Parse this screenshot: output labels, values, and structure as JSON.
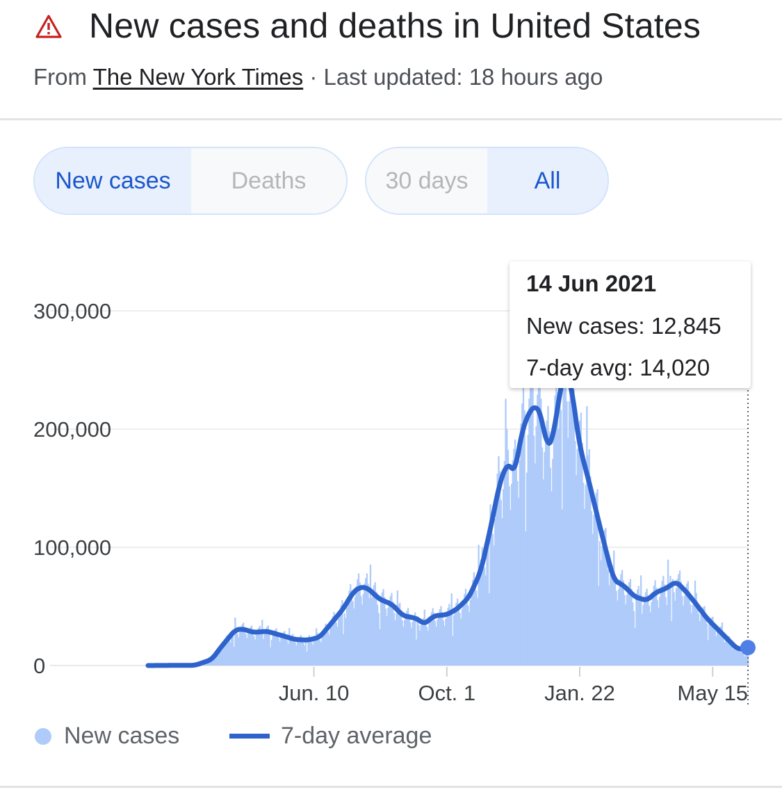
{
  "header": {
    "title": "New cases and deaths in United States",
    "source_prefix": "From",
    "source_name": "The New York Times",
    "source_suffix": " · Last updated: 18 hours ago",
    "warning_icon": "warning-triangle-icon"
  },
  "toggles": {
    "type_options": [
      "New cases",
      "Deaths"
    ],
    "type_selected": "New cases",
    "range_options": [
      "30 days",
      "All"
    ],
    "range_selected": "All"
  },
  "tooltip": {
    "date": "14 Jun 2021",
    "new_cases_line": "New cases: 12,845",
    "avg_line": "7-day avg: 14,020"
  },
  "legend": {
    "new_cases": "New cases",
    "avg": "7-day average"
  },
  "colors": {
    "bars": "#aecbfa",
    "avg_line": "#2f63cc",
    "accent": "#1a56c9"
  },
  "chart_data": {
    "type": "area",
    "y_ticks": [
      {
        "value": 0,
        "label": "0"
      },
      {
        "value": 100000,
        "label": "100,000"
      },
      {
        "value": 200000,
        "label": "200,000"
      },
      {
        "value": 300000,
        "label": "300,000"
      }
    ],
    "ylim": [
      0,
      340000
    ],
    "x_ticks": [
      {
        "date": "2020-06-10",
        "label": "Jun. 10"
      },
      {
        "date": "2020-10-01",
        "label": "Oct. 1"
      },
      {
        "date": "2021-01-22",
        "label": "Jan. 22"
      },
      {
        "date": "2021-05-15",
        "label": "May 15"
      }
    ],
    "x_range": [
      "2020-01-21",
      "2021-06-14"
    ],
    "series": [
      {
        "name": "7-day average",
        "style": "line",
        "points": [
          [
            "2020-01-21",
            0
          ],
          [
            "2020-03-01",
            200
          ],
          [
            "2020-03-15",
            5000
          ],
          [
            "2020-03-25",
            18000
          ],
          [
            "2020-04-04",
            30000
          ],
          [
            "2020-04-10",
            31000
          ],
          [
            "2020-04-20",
            28000
          ],
          [
            "2020-05-01",
            29000
          ],
          [
            "2020-05-15",
            25000
          ],
          [
            "2020-05-25",
            22000
          ],
          [
            "2020-06-05",
            21500
          ],
          [
            "2020-06-15",
            24000
          ],
          [
            "2020-06-25",
            36000
          ],
          [
            "2020-07-05",
            48000
          ],
          [
            "2020-07-12",
            60000
          ],
          [
            "2020-07-18",
            66000
          ],
          [
            "2020-07-25",
            66000
          ],
          [
            "2020-08-05",
            56000
          ],
          [
            "2020-08-15",
            52000
          ],
          [
            "2020-08-25",
            42000
          ],
          [
            "2020-09-05",
            40000
          ],
          [
            "2020-09-12",
            35000
          ],
          [
            "2020-09-20",
            42000
          ],
          [
            "2020-10-01",
            43000
          ],
          [
            "2020-10-10",
            48000
          ],
          [
            "2020-10-20",
            58000
          ],
          [
            "2020-10-30",
            80000
          ],
          [
            "2020-11-08",
            120000
          ],
          [
            "2020-11-15",
            155000
          ],
          [
            "2020-11-22",
            172000
          ],
          [
            "2020-11-28",
            162000
          ],
          [
            "2020-12-03",
            195000
          ],
          [
            "2020-12-10",
            215000
          ],
          [
            "2020-12-16",
            220000
          ],
          [
            "2020-12-20",
            213000
          ],
          [
            "2020-12-25",
            185000
          ],
          [
            "2020-12-30",
            190000
          ],
          [
            "2021-01-04",
            225000
          ],
          [
            "2021-01-10",
            255000
          ],
          [
            "2021-01-15",
            235000
          ],
          [
            "2021-01-22",
            185000
          ],
          [
            "2021-01-30",
            155000
          ],
          [
            "2021-02-10",
            110000
          ],
          [
            "2021-02-20",
            72000
          ],
          [
            "2021-02-28",
            68000
          ],
          [
            "2021-03-10",
            58000
          ],
          [
            "2021-03-20",
            55000
          ],
          [
            "2021-03-28",
            62000
          ],
          [
            "2021-04-05",
            65000
          ],
          [
            "2021-04-14",
            71000
          ],
          [
            "2021-04-22",
            63000
          ],
          [
            "2021-05-01",
            52000
          ],
          [
            "2021-05-10",
            40000
          ],
          [
            "2021-05-20",
            30000
          ],
          [
            "2021-05-28",
            22000
          ],
          [
            "2021-06-05",
            14000
          ],
          [
            "2021-06-14",
            14020
          ]
        ]
      },
      {
        "name": "New cases",
        "style": "bars",
        "note_points": "daily bars follow the 7-day average with weekly fluctuation",
        "last_value": 12845
      }
    ]
  }
}
